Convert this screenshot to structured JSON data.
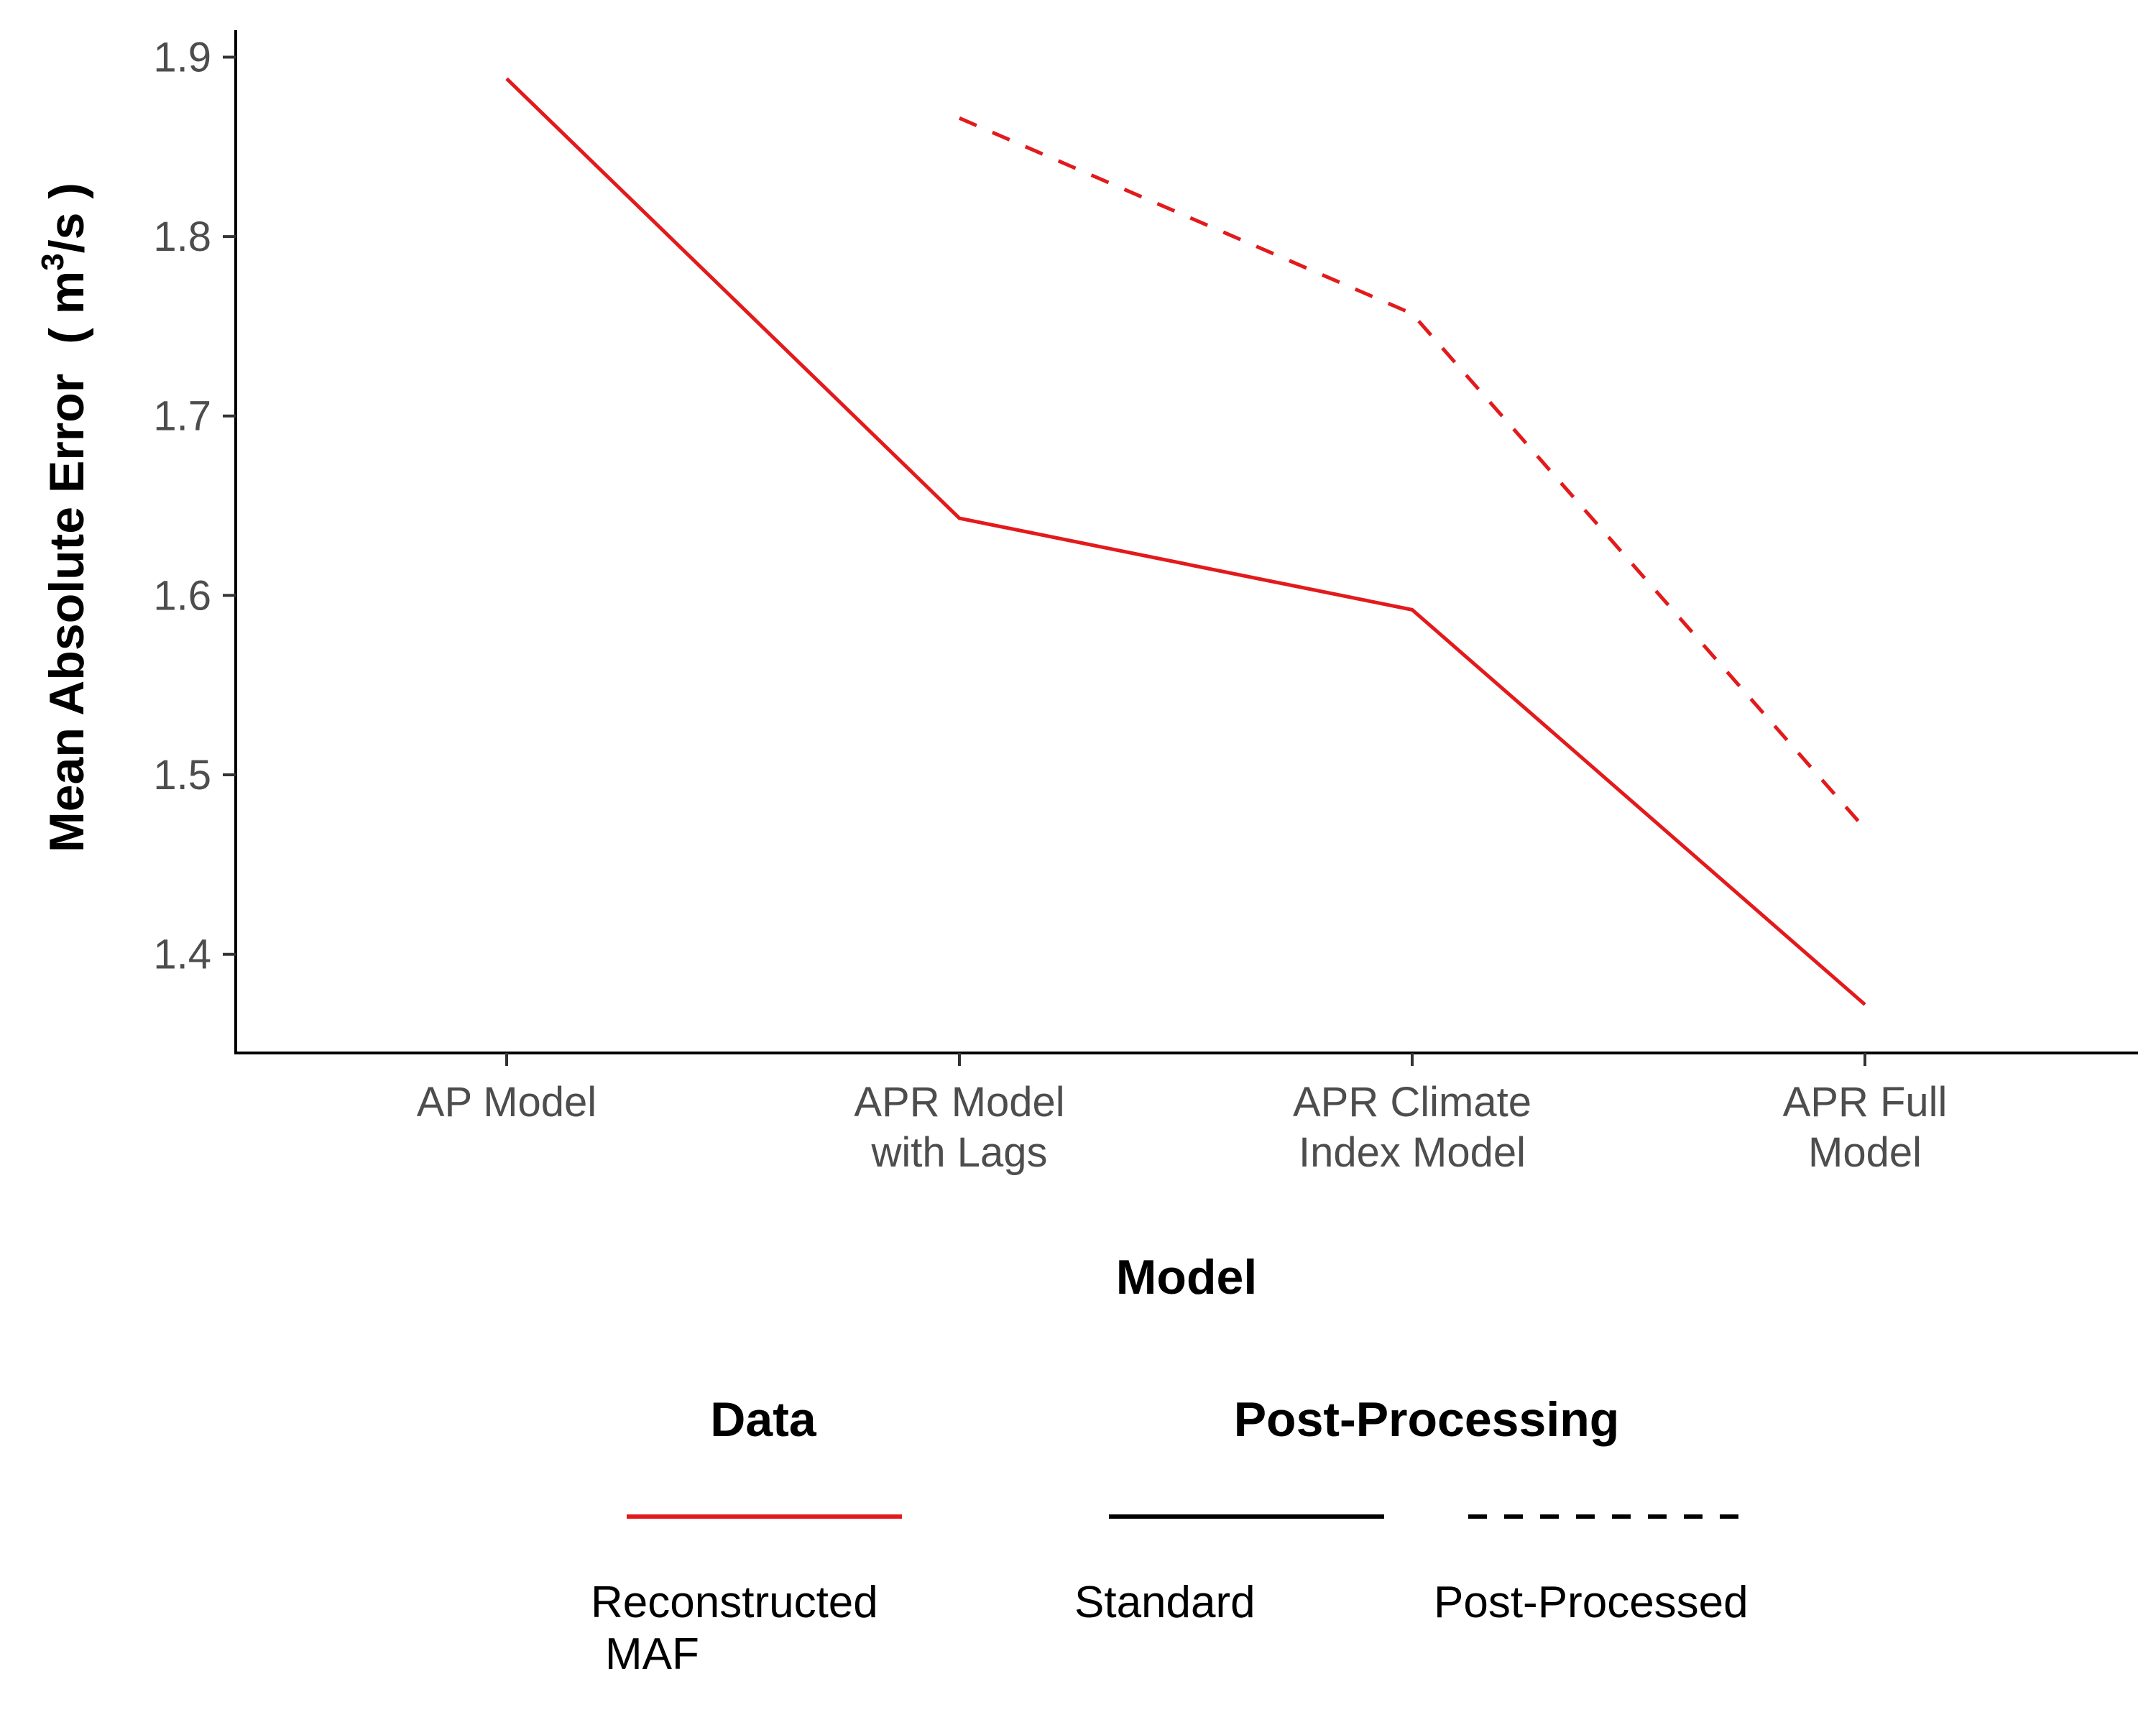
{
  "chart_data": {
    "type": "line",
    "categories": [
      [
        "AP Model"
      ],
      [
        "APR Model",
        "with Lags"
      ],
      [
        "APR Climate",
        "Index Model"
      ],
      [
        "APR Full",
        "Model"
      ]
    ],
    "series": [
      {
        "name": "Standard",
        "data_group": "Reconstructed MAF",
        "line_style": "solid",
        "color": "#e31a1c",
        "values": [
          1.888,
          1.643,
          1.592,
          1.372
        ]
      },
      {
        "name": "Post-Processed",
        "data_group": "Reconstructed MAF",
        "line_style": "dashed",
        "color": "#e31a1c",
        "values": [
          null,
          1.866,
          1.757,
          1.47
        ]
      }
    ],
    "xlabel": "Model",
    "ylabel": {
      "prefix": "Mean Absolute Error",
      "unit_open": "( m",
      "unit_sup": "3",
      "unit_close": "/s )"
    },
    "ylim": [
      1.345,
      1.915
    ],
    "yticks": [
      "1.4",
      "1.5",
      "1.6",
      "1.7",
      "1.8",
      "1.9"
    ],
    "grid": false,
    "legend_position": "bottom",
    "legend": {
      "data_title": "Data",
      "data_items": [
        {
          "label": [
            "Reconstructed",
            "MAF"
          ],
          "color": "#e31a1c",
          "line_style": "solid"
        }
      ],
      "pp_title": "Post-Processing",
      "pp_items": [
        {
          "label": "Standard",
          "color": "#000000",
          "line_style": "solid"
        },
        {
          "label": "Post-Processed",
          "color": "#000000",
          "line_style": "dashed"
        }
      ]
    }
  }
}
